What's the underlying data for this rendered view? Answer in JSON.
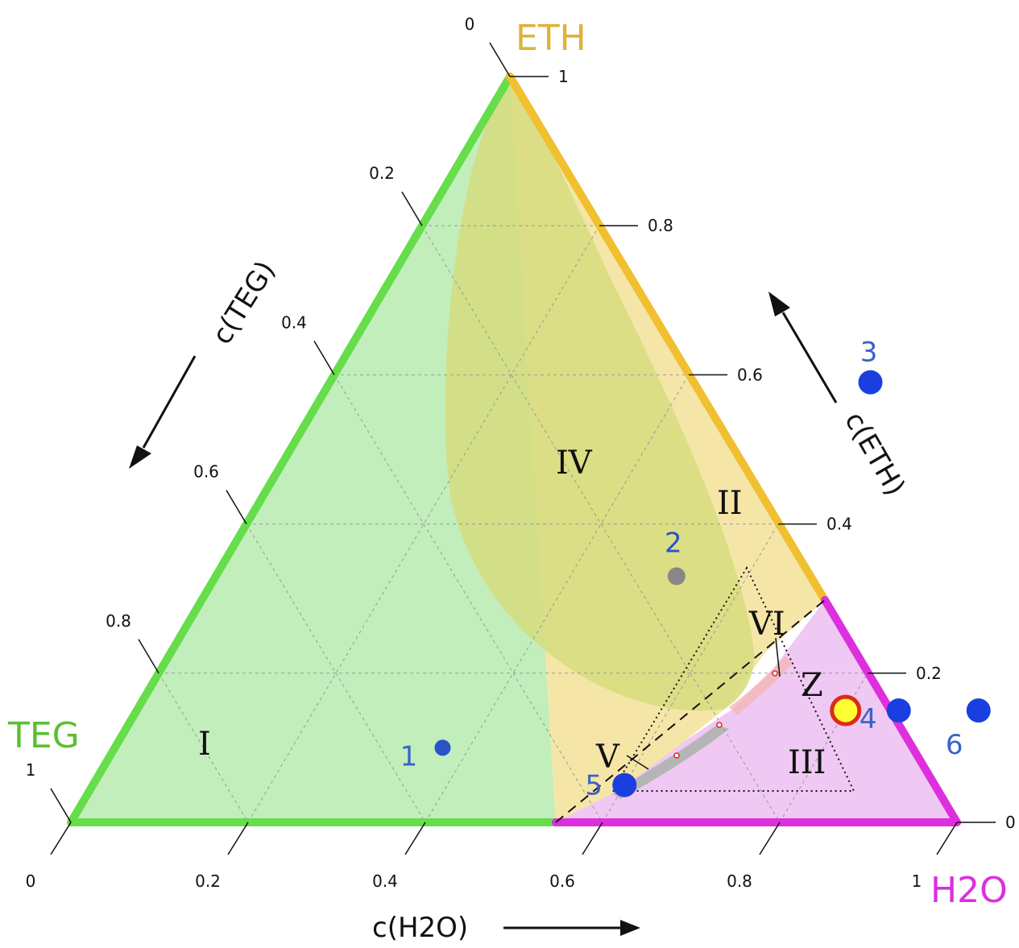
{
  "chart_data": {
    "type": "ternary",
    "corners": {
      "top": {
        "label": "ETH",
        "color": "#e0b23a"
      },
      "left": {
        "label": "TEG",
        "color": "#5cbf35"
      },
      "right": {
        "label": "H2O",
        "color": "#dd2fdd"
      }
    },
    "axes": {
      "h2o": {
        "label": "c(H2O)",
        "ticks": [
          "0",
          "0.2",
          "0.4",
          "0.6",
          "0.8",
          "1"
        ]
      },
      "teg": {
        "label": "c(TEG)",
        "ticks": [
          "0",
          "0.2",
          "0.4",
          "0.6",
          "0.8",
          "1"
        ]
      },
      "eth": {
        "label": "c(ETH)",
        "ticks": [
          "1",
          "0.8",
          "0.6",
          "0.4",
          "0.2",
          "0"
        ]
      }
    },
    "grid": true,
    "regions": [
      {
        "label": "I"
      },
      {
        "label": "II"
      },
      {
        "label": "III"
      },
      {
        "label": "IV"
      },
      {
        "label": "V"
      },
      {
        "label": "VI"
      }
    ],
    "points": [
      {
        "label": "1",
        "eth": 0.1,
        "h2o": 0.37,
        "color": "#2a52c9"
      },
      {
        "label": "2",
        "eth": 0.33,
        "h2o": 0.52,
        "color": "#888888"
      },
      {
        "label": "3",
        "eth": 0.59,
        "h2o": 0.61,
        "color": "#1a3fe0"
      },
      {
        "label": "4",
        "eth": 0.15,
        "h2o": 0.86,
        "color": "#1a3fe0"
      },
      {
        "label": "5",
        "eth": 0.05,
        "h2o": 0.6,
        "color": "#1a3fe0"
      },
      {
        "label": "6",
        "eth": 0.15,
        "h2o": 0.95,
        "color": "#1a3fe0"
      }
    ],
    "special_point": {
      "label": "Z",
      "eth": 0.15,
      "h2o": 0.8,
      "fill": "#ffff33",
      "stroke": "#dd2a1a"
    },
    "colors": {
      "teg_region": "#c2eebc",
      "eth_region": "#f5e6a8",
      "h2o_region": "#efc9f3",
      "iv_region": "#d6dc7e"
    }
  }
}
